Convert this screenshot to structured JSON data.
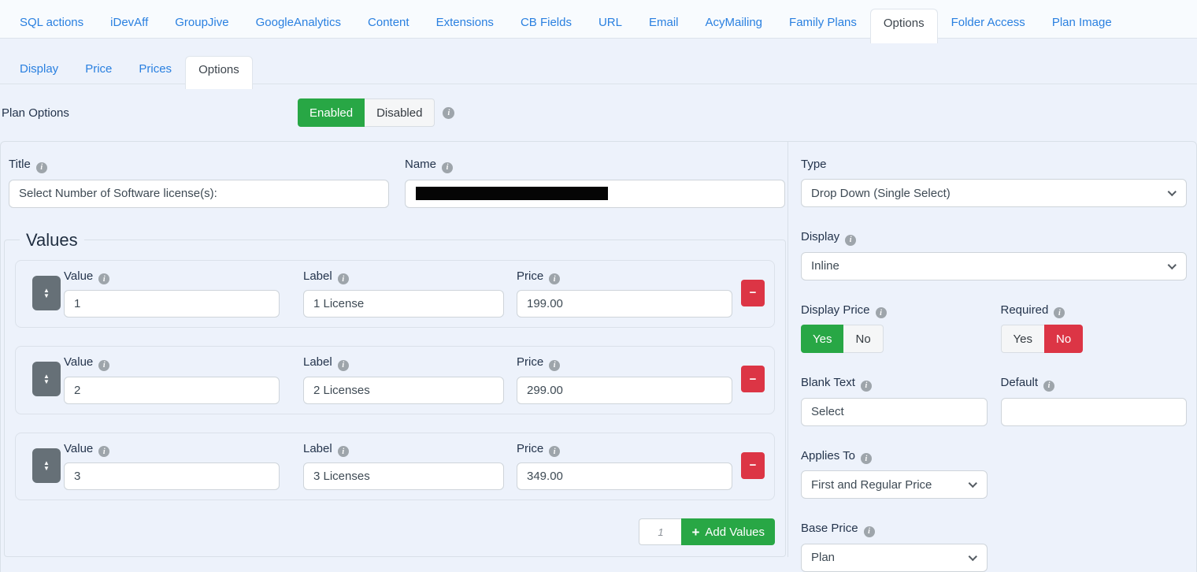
{
  "nav_tabs": {
    "items": [
      {
        "label": "SQL actions",
        "active": false
      },
      {
        "label": "iDevAff",
        "active": false
      },
      {
        "label": "GroupJive",
        "active": false
      },
      {
        "label": "GoogleAnalytics",
        "active": false
      },
      {
        "label": "Content",
        "active": false
      },
      {
        "label": "Extensions",
        "active": false
      },
      {
        "label": "CB Fields",
        "active": false
      },
      {
        "label": "URL",
        "active": false
      },
      {
        "label": "Email",
        "active": false
      },
      {
        "label": "AcyMailing",
        "active": false
      },
      {
        "label": "Family Plans",
        "active": false
      },
      {
        "label": "Options",
        "active": true
      },
      {
        "label": "Folder Access",
        "active": false
      },
      {
        "label": "Plan Image",
        "active": false
      }
    ]
  },
  "sub_tabs": {
    "items": [
      {
        "label": "Display",
        "active": false
      },
      {
        "label": "Price",
        "active": false
      },
      {
        "label": "Prices",
        "active": false
      },
      {
        "label": "Options",
        "active": true
      }
    ]
  },
  "plan_options": {
    "label": "Plan Options",
    "enabled_label": "Enabled",
    "disabled_label": "Disabled",
    "state": "enabled"
  },
  "form": {
    "title": {
      "label": "Title",
      "value": "Select Number of Software license(s):"
    },
    "name": {
      "label": "Name",
      "redacted": true
    },
    "type": {
      "label": "Type",
      "value": "Drop Down (Single Select)"
    },
    "values_section": {
      "legend": "Values",
      "columns": {
        "value": "Value",
        "label": "Label",
        "price": "Price"
      },
      "rows": [
        {
          "value": "1",
          "label": "1 License",
          "price": "199.00"
        },
        {
          "value": "2",
          "label": "2 Licenses",
          "price": "299.00"
        },
        {
          "value": "3",
          "label": "3 Licenses",
          "price": "349.00"
        }
      ],
      "add": {
        "count": "1",
        "button_label": "Add Values"
      }
    },
    "display": {
      "label": "Display",
      "value": "Inline"
    },
    "display_price": {
      "label": "Display Price",
      "yes": "Yes",
      "no": "No",
      "selected": "yes"
    },
    "required": {
      "label": "Required",
      "yes": "Yes",
      "no": "No",
      "selected": "no"
    },
    "blank_text": {
      "label": "Blank Text",
      "value": "Select"
    },
    "default": {
      "label": "Default",
      "value": ""
    },
    "applies_to": {
      "label": "Applies To",
      "value": "First and Regular Price"
    },
    "base_price": {
      "label": "Base Price",
      "value": "Plan"
    }
  },
  "icons": {
    "info": "i",
    "minus": "−",
    "plus": "+",
    "sort_up": "▲",
    "sort_down": "▼"
  },
  "colors": {
    "accent_blue": "#2a80e0",
    "success_green": "#28a745",
    "danger_red": "#dc3545",
    "handle_gray": "#667077",
    "label_navy": "#24344c",
    "page_bg": "#edf2fb"
  }
}
